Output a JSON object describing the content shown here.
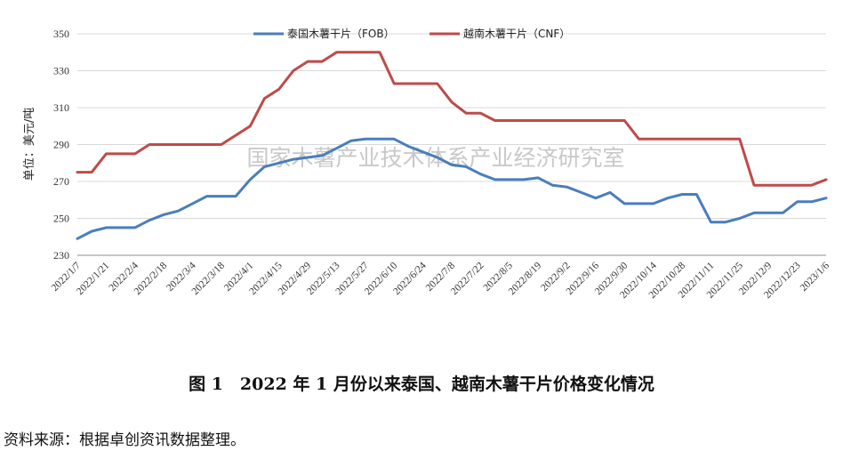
{
  "chart_data": {
    "type": "line",
    "ylabel": "单位：美元/吨",
    "ylim": [
      230,
      350
    ],
    "yticks": [
      230,
      250,
      270,
      290,
      310,
      330,
      350
    ],
    "grid": "horizontal",
    "legend_position": "top-center",
    "x": [
      "2022/1/7",
      "2022/1/14",
      "2022/1/21",
      "2022/1/28",
      "2022/2/4",
      "2022/2/11",
      "2022/2/18",
      "2022/2/25",
      "2022/3/4",
      "2022/3/11",
      "2022/3/18",
      "2022/3/25",
      "2022/4/1",
      "2022/4/8",
      "2022/4/15",
      "2022/4/22",
      "2022/4/29",
      "2022/5/6",
      "2022/5/13",
      "2022/5/20",
      "2022/5/27",
      "2022/6/3",
      "2022/6/10",
      "2022/6/17",
      "2022/6/24",
      "2022/7/1",
      "2022/7/8",
      "2022/7/15",
      "2022/7/22",
      "2022/7/29",
      "2022/8/5",
      "2022/8/12",
      "2022/8/19",
      "2022/8/26",
      "2022/9/2",
      "2022/9/9",
      "2022/9/16",
      "2022/9/23",
      "2022/9/30",
      "2022/10/7",
      "2022/10/14",
      "2022/10/21",
      "2022/10/28",
      "2022/11/4",
      "2022/11/11",
      "2022/11/18",
      "2022/11/25",
      "2022/12/2",
      "2022/12/9",
      "2022/12/16",
      "2022/12/23",
      "2022/12/30",
      "2023/1/6"
    ],
    "x_tick_labels": [
      "2022/1/7",
      "2022/1/21",
      "2022/2/4",
      "2022/2/18",
      "2022/3/4",
      "2022/3/18",
      "2022/4/1",
      "2022/4/15",
      "2022/4/29",
      "2022/5/13",
      "2022/5/27",
      "2022/6/10",
      "2022/6/24",
      "2022/7/8",
      "2022/7/22",
      "2022/8/5",
      "2022/8/19",
      "2022/9/2",
      "2022/9/16",
      "2022/9/30",
      "2022/10/14",
      "2022/10/28",
      "2022/11/11",
      "2022/11/25",
      "2022/12/9",
      "2022/12/23",
      "2023/1/6"
    ],
    "series": [
      {
        "name": "泰国木薯干片（FOB）",
        "color": "#4a7ebb",
        "values": [
          239,
          243,
          245,
          245,
          245,
          249,
          252,
          254,
          258,
          262,
          262,
          262,
          271,
          278,
          280,
          282,
          283,
          284,
          288,
          292,
          293,
          293,
          293,
          289,
          286,
          283,
          279,
          278,
          274,
          271,
          271,
          271,
          272,
          268,
          267,
          264,
          261,
          264,
          258,
          258,
          258,
          261,
          263,
          263,
          248,
          248,
          250,
          253,
          253,
          253,
          259,
          259,
          261
        ]
      },
      {
        "name": "越南木薯干片（CNF）",
        "color": "#be4b48",
        "values": [
          275,
          275,
          285,
          285,
          285,
          290,
          290,
          290,
          290,
          290,
          290,
          295,
          300,
          315,
          320,
          330,
          335,
          335,
          340,
          340,
          340,
          340,
          323,
          323,
          323,
          323,
          313,
          307,
          307,
          303,
          303,
          303,
          303,
          303,
          303,
          303,
          303,
          303,
          303,
          293,
          293,
          293,
          293,
          293,
          293,
          293,
          293,
          268,
          268,
          268,
          268,
          268,
          271
        ]
      }
    ]
  },
  "watermark": "国家木薯产业技术体系产业经济研究室",
  "caption": "图 1　2022 年 1 月份以来泰国、越南木薯干片价格变化情况",
  "source": "资料来源：根据卓创资讯数据整理。",
  "colors": {
    "grid": "#d9d9d9",
    "axis": "#8c8c8c"
  }
}
